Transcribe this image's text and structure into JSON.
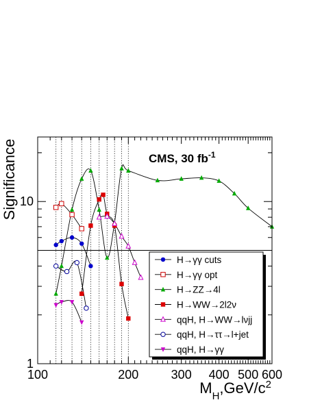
{
  "chart_data": {
    "type": "line",
    "xlabel": "M_H,GeV/c^2",
    "ylabel": "Significance",
    "annotation": "CMS, 30 fb^-1",
    "x_scale": "log",
    "y_scale": "log",
    "xlim": [
      100,
      600
    ],
    "ylim": [
      1,
      25
    ],
    "x_major_ticks": [
      {
        "value": 100,
        "label": "100"
      },
      {
        "value": 200,
        "label": "200"
      },
      {
        "value": 300,
        "label": "300"
      },
      {
        "value": 400,
        "label": "400"
      },
      {
        "value": 500,
        "label": "500"
      },
      {
        "value": 600,
        "label": "600"
      }
    ],
    "y_major_ticks": [
      {
        "value": 1,
        "label": "1"
      },
      {
        "value": 10,
        "label": "10"
      }
    ],
    "reference_line": 5,
    "vertical_dotted_lines": [
      115,
      120,
      130,
      140,
      150,
      160,
      170,
      180,
      190,
      200
    ],
    "legend_placement": "bottom-right",
    "series": [
      {
        "name": "H→γγ cuts",
        "marker": "circle-filled",
        "color": "#0000cc",
        "x": [
          115,
          120,
          130,
          140,
          150
        ],
        "y": [
          5.4,
          5.7,
          6.0,
          5.5,
          4.0
        ]
      },
      {
        "name": "H→γγ opt",
        "marker": "square-open",
        "color": "#cc0000",
        "x": [
          115,
          120,
          130,
          140
        ],
        "y": [
          9.2,
          9.7,
          8.3,
          6.8
        ]
      },
      {
        "name": "H→ZZ→4l",
        "marker": "triangle-filled",
        "color": "#00aa00",
        "x": [
          115,
          120,
          130,
          140,
          150,
          160,
          170,
          180,
          190,
          200,
          250,
          300,
          350,
          400,
          450,
          500,
          600
        ],
        "y": [
          2.7,
          4.0,
          8.9,
          13.8,
          15.5,
          8.9,
          4.5,
          7.4,
          16.0,
          15.5,
          13.5,
          13.8,
          14.0,
          13.4,
          11.2,
          9.1,
          7.0
        ]
      },
      {
        "name": "H→WW→2l2ν",
        "marker": "square-filled",
        "color": "#dd0000",
        "x": [
          140,
          150,
          160,
          165,
          170,
          180,
          190,
          200
        ],
        "y": [
          2.7,
          7.1,
          10.3,
          11.0,
          8.4,
          7.1,
          3.1,
          1.9
        ]
      },
      {
        "name": "qqH, H→WW→lνjj",
        "marker": "triangle-open",
        "color": "#cc00cc",
        "x": [
          160,
          170,
          180,
          190,
          200,
          210,
          220
        ],
        "y": [
          8.0,
          8.1,
          7.3,
          6.1,
          5.3,
          4.2,
          3.4
        ]
      },
      {
        "name": "qqH, H→ττ→l+jet",
        "marker": "circle-open",
        "color": "#000099",
        "x": [
          115,
          125,
          135,
          145
        ],
        "y": [
          4.0,
          3.7,
          4.2,
          2.2
        ]
      },
      {
        "name": "qqH, H→γγ",
        "marker": "triangle-down-filled",
        "color": "#cc00cc",
        "x": [
          115,
          120,
          130,
          140
        ],
        "y": [
          2.3,
          2.4,
          2.4,
          1.8
        ]
      }
    ]
  }
}
